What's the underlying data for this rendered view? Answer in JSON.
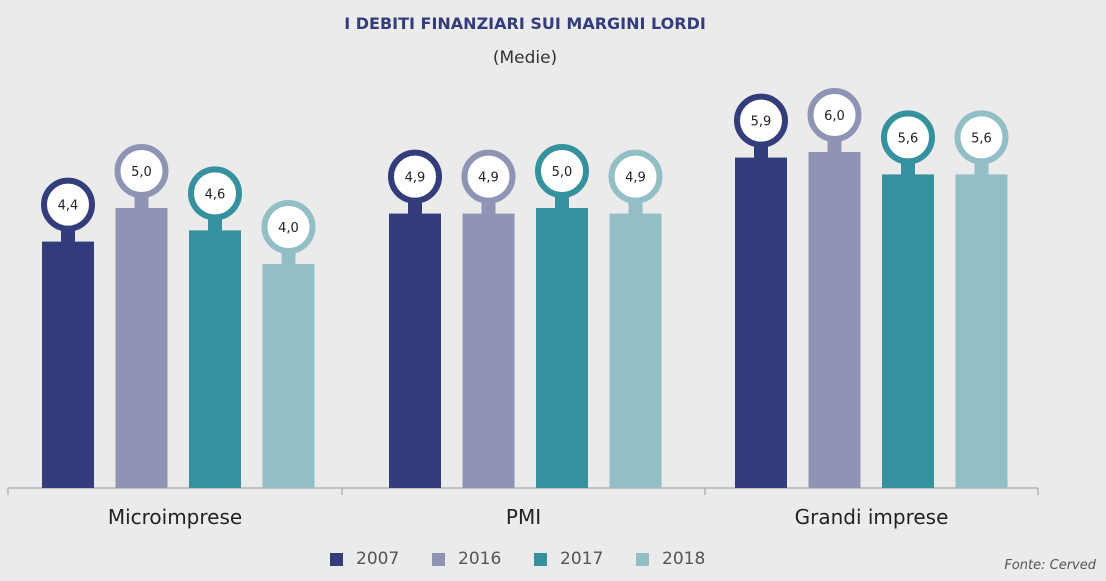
{
  "chart_data": {
    "type": "bar",
    "title": "I DEBITI FINANZIARI SUI MARGINI LORDI",
    "subtitle": "(Medie)",
    "categories": [
      "Microimprese",
      "PMI",
      "Grandi imprese"
    ],
    "series": [
      {
        "name": "2007",
        "color": "#343d7c",
        "values": [
          4.4,
          4.9,
          5.9
        ],
        "labels": [
          "4,4",
          "4,9",
          "5,9"
        ]
      },
      {
        "name": "2016",
        "color": "#8f94b5",
        "values": [
          5.0,
          4.9,
          6.0
        ],
        "labels": [
          "5,0",
          "4,9",
          "6,0"
        ]
      },
      {
        "name": "2017",
        "color": "#35919e",
        "values": [
          4.6,
          5.0,
          5.6
        ],
        "labels": [
          "4,6",
          "5,0",
          "5,6"
        ]
      },
      {
        "name": "2018",
        "color": "#92bec5",
        "values": [
          4.0,
          4.9,
          5.6
        ],
        "labels": [
          "4,0",
          "4,9",
          "5,6"
        ]
      }
    ],
    "ylim": [
      0,
      6.5
    ],
    "grid": false,
    "legend": "bottom",
    "source": "Fonte: Cerved"
  }
}
